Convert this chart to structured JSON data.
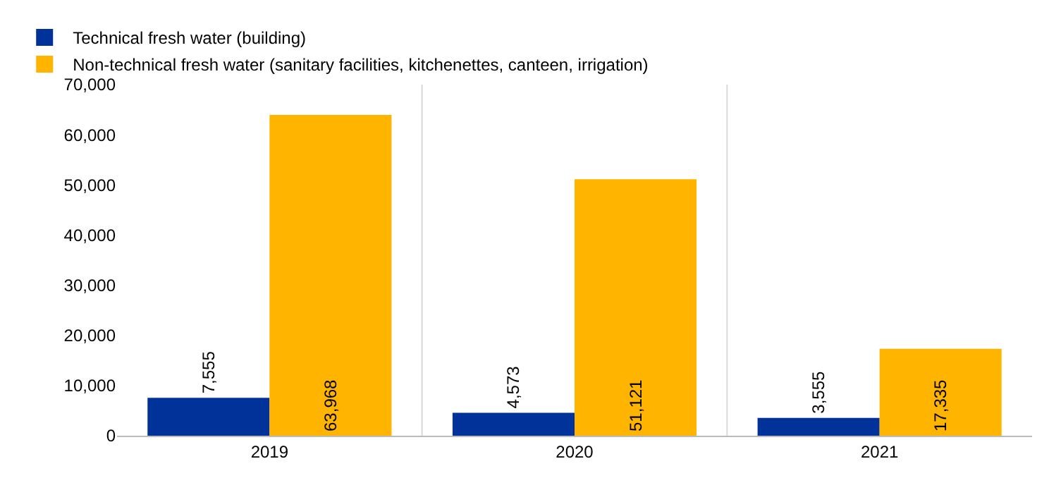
{
  "chart_data": {
    "type": "bar",
    "categories": [
      "2019",
      "2020",
      "2021"
    ],
    "series": [
      {
        "name": "Technical fresh water (building)",
        "color": "#003299",
        "values": [
          7555,
          4573,
          3555
        ],
        "value_labels": [
          "7,555",
          "4,573",
          "3,555"
        ]
      },
      {
        "name": "Non-technical fresh water (sanitary facilities, kitchenettes, canteen, irrigation)",
        "color": "#ffb400",
        "values": [
          63968,
          51121,
          17335
        ],
        "value_labels": [
          "63,968",
          "51,121",
          "17,335"
        ]
      }
    ],
    "ylim": [
      0,
      70000
    ],
    "yticks": [
      {
        "value": 0,
        "label": "0"
      },
      {
        "value": 10000,
        "label": "10,000"
      },
      {
        "value": 20000,
        "label": "20,000"
      },
      {
        "value": 30000,
        "label": "30,000"
      },
      {
        "value": 40000,
        "label": "40,000"
      },
      {
        "value": 50000,
        "label": "50,000"
      },
      {
        "value": 60000,
        "label": "60,000"
      },
      {
        "value": 70000,
        "label": "70,000"
      }
    ],
    "grid": "x",
    "legend": "top left"
  }
}
